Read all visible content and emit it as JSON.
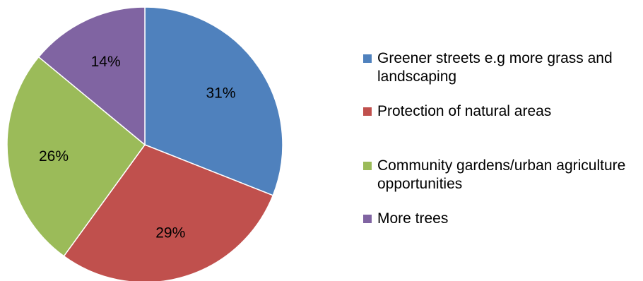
{
  "chart_data": {
    "type": "pie",
    "categories": [
      "Greener streets e.g more grass and landscaping",
      "Protection of natural areas",
      "Community gardens/urban agriculture opportunities",
      "More trees"
    ],
    "values": [
      31,
      29,
      26,
      14
    ],
    "labels": [
      "31%",
      "29%",
      "26%",
      "14%"
    ],
    "colors": [
      "#4F81BD",
      "#C0504D",
      "#9BBB59",
      "#8064A2"
    ],
    "start_angle": "12 o'clock",
    "direction": "clockwise",
    "legend_position": "right"
  }
}
